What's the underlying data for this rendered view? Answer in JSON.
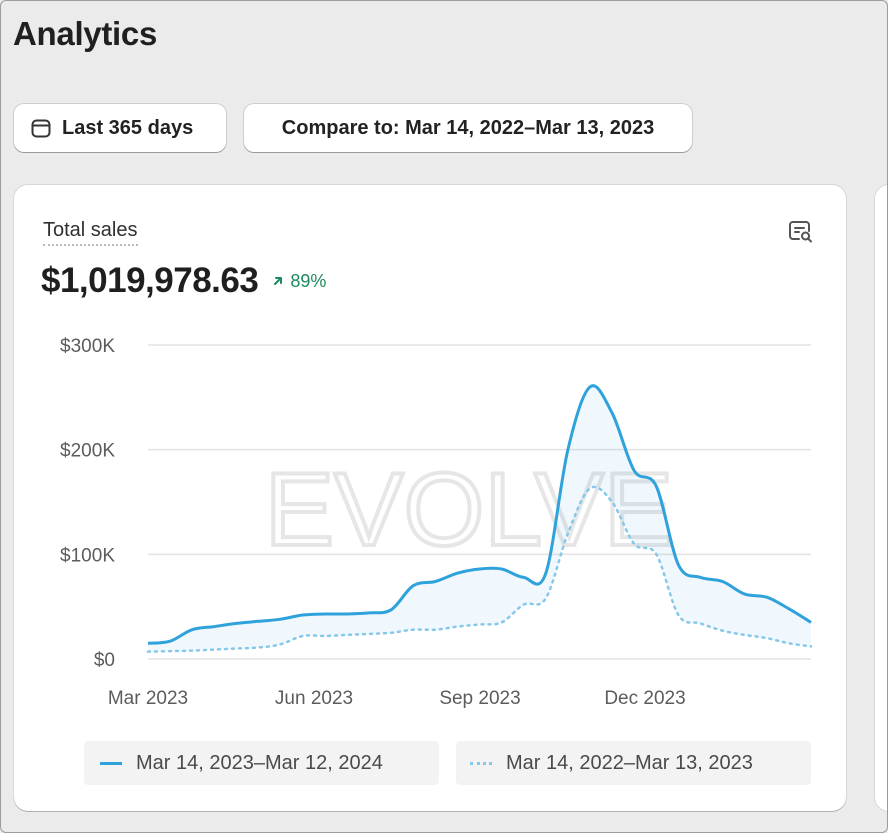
{
  "page": {
    "title": "Analytics"
  },
  "filters": {
    "date_range_label": "Last 365 days",
    "compare_label": "Compare to: Mar 14, 2022–Mar 13, 2023"
  },
  "card": {
    "metric_label": "Total sales",
    "metric_value": "$1,019,978.63",
    "delta": "89%",
    "watermark": "EVOLVE"
  },
  "colors": {
    "current_series": "#2fa2dc",
    "previous_series": "#86c8ea",
    "delta_positive": "#1d8a5c"
  },
  "chart_data": {
    "type": "line",
    "yticks": [
      "$300K",
      "$200K",
      "$100K",
      "$0"
    ],
    "ytick_values": [
      300000,
      200000,
      100000,
      0
    ],
    "xticks": [
      "Mar 2023",
      "Jun 2023",
      "Sep 2023",
      "Dec 2023"
    ],
    "ylim": [
      0,
      300000
    ],
    "grid": true,
    "legend_position": "bottom",
    "series": [
      {
        "name": "Mar 14, 2023–Mar 12, 2024",
        "style": "solid",
        "values": [
          15000,
          17000,
          28000,
          31000,
          34000,
          36000,
          38000,
          42000,
          43000,
          43000,
          44000,
          47000,
          70000,
          74000,
          82000,
          86000,
          86000,
          78000,
          82000,
          200000,
          260000,
          235000,
          180000,
          165000,
          90000,
          78000,
          74000,
          62000,
          59000,
          48000,
          35000
        ]
      },
      {
        "name": "Mar 14, 2022–Mar 13, 2023",
        "style": "dotted",
        "values": [
          7000,
          7500,
          8000,
          9000,
          10000,
          11000,
          14000,
          22000,
          22000,
          23000,
          24000,
          25000,
          28000,
          28000,
          31000,
          33000,
          35000,
          52000,
          58000,
          120000,
          163000,
          150000,
          110000,
          100000,
          42000,
          34000,
          27000,
          23000,
          20000,
          15000,
          12000
        ]
      }
    ]
  }
}
